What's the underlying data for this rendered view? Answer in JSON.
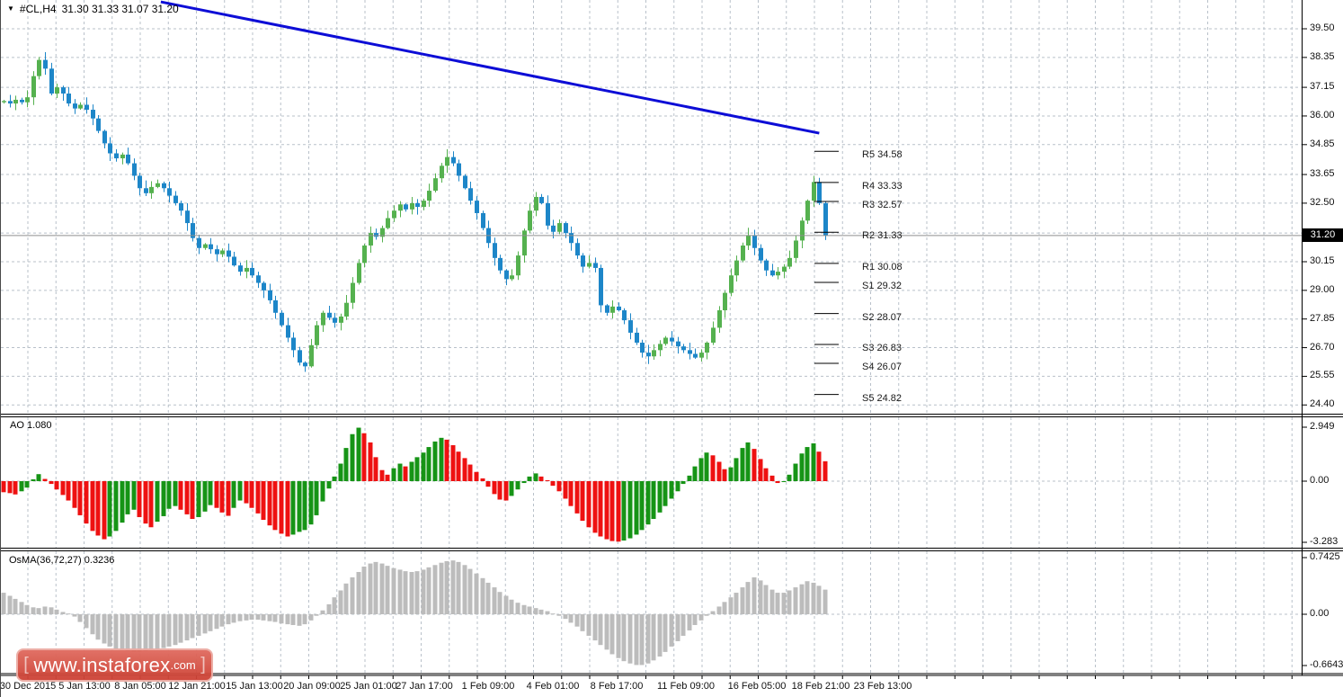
{
  "title": {
    "symbol_period": "#CL,H4",
    "ohlc": "31.30 31.33 31.07 31.20"
  },
  "watermark": {
    "bracket_left": "[ ",
    "text": "www.instaforex",
    "suffix": ".com",
    "bracket_right": " ]"
  },
  "colors": {
    "bull": "#55b14f",
    "bear": "#1d86c8",
    "ao_up": "#169416",
    "ao_down": "#ee1111",
    "osma": "#bcbcbc",
    "grid": "#b9c1ca",
    "trendline": "#0d0dd6",
    "pivot_line": "#000000",
    "current_price_line": "#8f8f8f",
    "price_tag_bg": "#000000",
    "price_tag_text": "#ffffff",
    "watermark_bg": "#cd4134",
    "watermark_border": "#ecaaa2"
  },
  "price_axis": {
    "labels": [
      "39.50",
      "38.35",
      "37.15",
      "36.00",
      "34.85",
      "33.65",
      "32.50",
      "30.15",
      "29.00",
      "27.85",
      "26.70",
      "25.55",
      "24.40"
    ],
    "grid_prices": [
      39.5,
      38.35,
      37.15,
      36.0,
      34.85,
      33.65,
      32.5,
      31.3,
      30.15,
      29.0,
      27.85,
      26.7,
      25.55,
      24.4
    ],
    "current": "31.20",
    "current_value": 31.2
  },
  "time_axis": {
    "labels": [
      {
        "text": "30 Dec 2015",
        "x": 30
      },
      {
        "text": "5 Jan 13:00",
        "x": 93
      },
      {
        "text": "8 Jan 05:00",
        "x": 155
      },
      {
        "text": "12 Jan 21:00",
        "x": 218
      },
      {
        "text": "15 Jan 13:00",
        "x": 282
      },
      {
        "text": "20 Jan 09:00",
        "x": 346
      },
      {
        "text": "25 Jan 01:00",
        "x": 409
      },
      {
        "text": "27 Jan 17:00",
        "x": 471
      },
      {
        "text": "1 Feb 09:00",
        "x": 542
      },
      {
        "text": "4 Feb 01:00",
        "x": 614
      },
      {
        "text": "8 Feb 17:00",
        "x": 685
      },
      {
        "text": "11 Feb 09:00",
        "x": 762
      },
      {
        "text": "16 Feb 05:00",
        "x": 841
      },
      {
        "text": "18 Feb 21:00",
        "x": 912
      },
      {
        "text": "23 Feb 13:00",
        "x": 981
      }
    ]
  },
  "indicators": {
    "ao": {
      "name": "AO",
      "value": "1.080",
      "axis": [
        {
          "text": "2.949",
          "y": 475
        },
        {
          "text": "0.00",
          "y": 535
        },
        {
          "text": "-3.283",
          "y": 603
        }
      ]
    },
    "osma": {
      "name": "OsMA(36,72,27)",
      "value": "0.3236",
      "axis": [
        {
          "text": "0.7425",
          "y": 620
        },
        {
          "text": "0.00",
          "y": 683
        },
        {
          "text": "-0.6643",
          "y": 740
        }
      ]
    }
  },
  "chart_data": [
    {
      "type": "candlestick",
      "title": "#CL,H4",
      "last_ohlc": {
        "open": 31.3,
        "high": 31.33,
        "low": 31.07,
        "close": 31.2
      },
      "ylim": [
        24.4,
        39.5
      ],
      "closes": [
        36.6,
        36.5,
        36.65,
        36.55,
        36.75,
        37.6,
        38.25,
        37.9,
        36.9,
        37.15,
        36.9,
        36.5,
        36.3,
        36.45,
        36.25,
        35.9,
        35.4,
        34.9,
        34.5,
        34.3,
        34.45,
        34.1,
        33.6,
        33.1,
        32.9,
        33.15,
        33.3,
        33.1,
        32.8,
        32.5,
        32.2,
        31.7,
        31.1,
        30.7,
        30.85,
        30.65,
        30.45,
        30.6,
        30.35,
        30.0,
        29.75,
        29.9,
        29.6,
        29.3,
        29.0,
        28.6,
        28.1,
        27.6,
        27.1,
        26.6,
        26.1,
        25.95,
        26.8,
        27.6,
        28.1,
        27.9,
        27.7,
        27.95,
        28.5,
        29.3,
        30.1,
        30.8,
        31.3,
        31.15,
        31.5,
        31.9,
        32.2,
        32.45,
        32.25,
        32.5,
        32.35,
        32.6,
        33.0,
        33.5,
        34.0,
        34.35,
        34.1,
        33.6,
        33.1,
        32.6,
        32.1,
        31.5,
        30.9,
        30.3,
        29.8,
        29.45,
        29.6,
        30.4,
        31.4,
        32.2,
        32.75,
        32.5,
        31.6,
        31.35,
        31.7,
        31.3,
        30.9,
        30.4,
        29.95,
        30.1,
        29.9,
        28.4,
        28.1,
        28.35,
        28.2,
        27.8,
        27.3,
        26.9,
        26.5,
        26.35,
        26.6,
        26.85,
        27.1,
        26.95,
        26.75,
        26.6,
        26.45,
        26.3,
        26.5,
        26.9,
        27.5,
        28.2,
        28.9,
        29.6,
        30.2,
        30.8,
        31.2,
        30.7,
        30.2,
        29.8,
        29.6,
        29.75,
        29.95,
        30.3,
        31.0,
        31.8,
        32.6,
        33.35,
        32.5,
        31.2
      ],
      "trendline": {
        "from": {
          "index": 26.6,
          "price": 40.58
        },
        "to": {
          "index": 138.0,
          "price": 35.31
        }
      },
      "pivots": [
        {
          "label": "R5",
          "value": 34.58
        },
        {
          "label": "R4",
          "value": 33.33
        },
        {
          "label": "R3",
          "value": 32.57
        },
        {
          "label": "R2",
          "value": 31.33
        },
        {
          "label": "R1",
          "value": 30.08
        },
        {
          "label": "S1",
          "value": 29.32
        },
        {
          "label": "S2",
          "value": 28.07
        },
        {
          "label": "S3",
          "value": 26.83
        },
        {
          "label": "S4",
          "value": 26.07
        },
        {
          "label": "S5",
          "value": 24.82
        }
      ]
    },
    {
      "type": "bar",
      "name": "AO",
      "current_value": 1.08,
      "ylim": [
        -3.283,
        2.949
      ],
      "values": [
        -0.6,
        -0.65,
        -0.72,
        -0.55,
        -0.35,
        0.1,
        0.38,
        0.12,
        -0.15,
        -0.45,
        -0.75,
        -1.05,
        -1.45,
        -1.85,
        -2.3,
        -2.7,
        -2.95,
        -3.15,
        -3.0,
        -2.7,
        -2.25,
        -1.8,
        -1.55,
        -1.95,
        -2.3,
        -2.5,
        -2.2,
        -1.9,
        -1.5,
        -1.35,
        -1.55,
        -1.8,
        -2.05,
        -1.95,
        -1.65,
        -1.3,
        -1.45,
        -1.7,
        -1.88,
        -1.45,
        -1.05,
        -1.2,
        -1.45,
        -1.75,
        -2.1,
        -2.4,
        -2.65,
        -2.85,
        -3.0,
        -2.9,
        -2.75,
        -2.65,
        -2.35,
        -1.85,
        -1.1,
        -0.4,
        0.25,
        0.95,
        1.8,
        2.55,
        2.9,
        2.6,
        2.1,
        1.3,
        0.6,
        0.35,
        0.7,
        0.95,
        0.8,
        1.05,
        1.3,
        1.55,
        1.85,
        2.15,
        2.35,
        2.25,
        1.95,
        1.6,
        1.25,
        0.9,
        0.5,
        0.15,
        -0.3,
        -0.7,
        -1.0,
        -1.05,
        -0.8,
        -0.45,
        -0.1,
        0.25,
        0.42,
        0.25,
        0.05,
        -0.25,
        -0.55,
        -0.95,
        -1.35,
        -1.75,
        -2.15,
        -2.5,
        -2.8,
        -3.0,
        -3.15,
        -3.25,
        -3.28,
        -3.22,
        -3.1,
        -2.9,
        -2.65,
        -2.35,
        -2.05,
        -1.7,
        -1.35,
        -0.95,
        -0.55,
        -0.15,
        0.3,
        0.8,
        1.25,
        1.55,
        1.4,
        1.05,
        0.65,
        0.75,
        1.25,
        1.8,
        2.1,
        1.75,
        1.2,
        0.7,
        0.3,
        -0.1,
        -0.05,
        0.35,
        0.95,
        1.5,
        1.85,
        2.05,
        1.6,
        1.08
      ]
    },
    {
      "type": "bar",
      "name": "OsMA(36,72,27)",
      "current_value": 0.3236,
      "ylim": [
        -0.6643,
        0.7425
      ],
      "values": [
        0.28,
        0.24,
        0.2,
        0.16,
        0.12,
        0.09,
        0.08,
        0.1,
        0.09,
        0.06,
        0.03,
        0.01,
        -0.03,
        -0.1,
        -0.18,
        -0.26,
        -0.33,
        -0.38,
        -0.42,
        -0.45,
        -0.47,
        -0.48,
        -0.49,
        -0.49,
        -0.48,
        -0.47,
        -0.46,
        -0.44,
        -0.42,
        -0.4,
        -0.37,
        -0.34,
        -0.31,
        -0.28,
        -0.25,
        -0.22,
        -0.19,
        -0.16,
        -0.13,
        -0.11,
        -0.09,
        -0.08,
        -0.07,
        -0.07,
        -0.08,
        -0.09,
        -0.1,
        -0.12,
        -0.13,
        -0.14,
        -0.15,
        -0.13,
        -0.08,
        -0.02,
        0.05,
        0.13,
        0.22,
        0.31,
        0.4,
        0.48,
        0.55,
        0.62,
        0.66,
        0.68,
        0.66,
        0.63,
        0.6,
        0.58,
        0.56,
        0.55,
        0.56,
        0.58,
        0.61,
        0.64,
        0.67,
        0.69,
        0.7,
        0.68,
        0.64,
        0.59,
        0.53,
        0.47,
        0.41,
        0.35,
        0.29,
        0.24,
        0.19,
        0.15,
        0.12,
        0.1,
        0.08,
        0.06,
        0.04,
        0.01,
        -0.02,
        -0.06,
        -0.11,
        -0.16,
        -0.22,
        -0.28,
        -0.34,
        -0.4,
        -0.46,
        -0.52,
        -0.57,
        -0.61,
        -0.64,
        -0.66,
        -0.66,
        -0.64,
        -0.6,
        -0.55,
        -0.49,
        -0.42,
        -0.35,
        -0.28,
        -0.21,
        -0.14,
        -0.08,
        -0.02,
        0.04,
        0.1,
        0.16,
        0.22,
        0.28,
        0.35,
        0.42,
        0.48,
        0.44,
        0.38,
        0.32,
        0.28,
        0.28,
        0.31,
        0.35,
        0.39,
        0.43,
        0.41,
        0.37,
        0.32
      ]
    }
  ]
}
